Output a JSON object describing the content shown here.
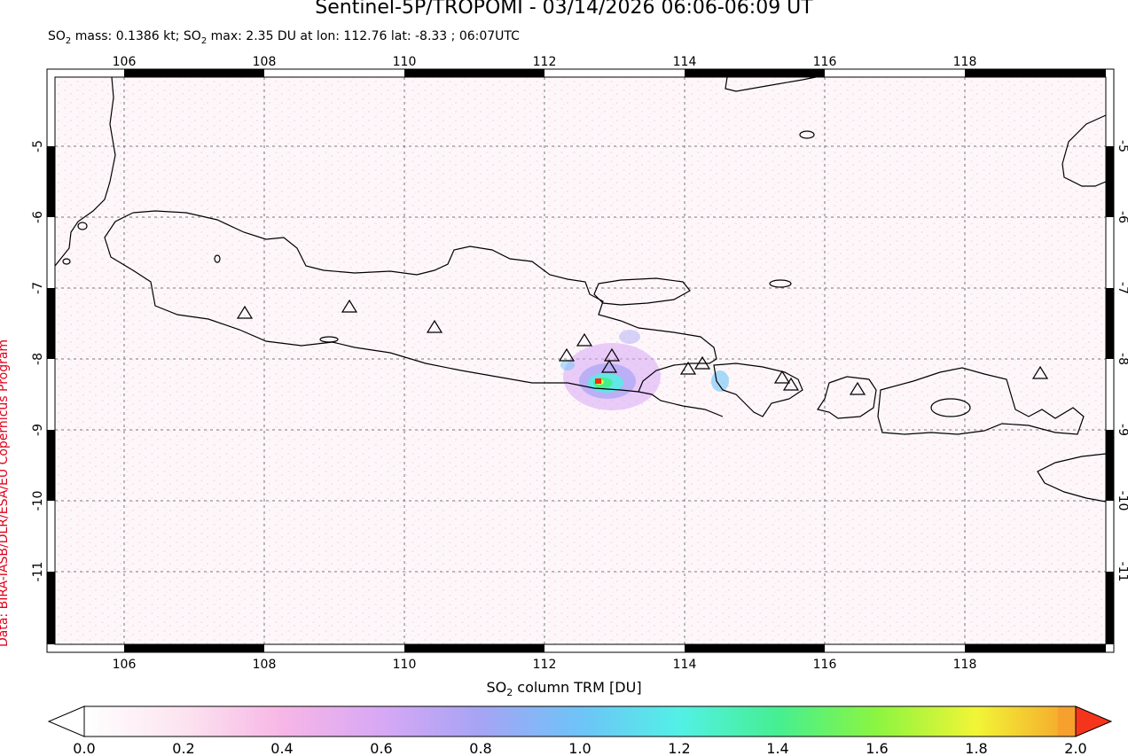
{
  "title": "Sentinel-5P/TROPOMI - 03/14/2026 06:06-06:09 UT",
  "subtitle": {
    "prefix": "SO",
    "mass_text": " mass: 0.1386 kt; SO",
    "rest_text": " max: 2.35 DU at lon: 112.76 lat: -8.33 ; 06:07UTC",
    "sub": "2"
  },
  "credit": "Data: BIRA-IASB/DLR/ESA/EU Copernicus Program",
  "map": {
    "lon_labels": [
      "106",
      "108",
      "110",
      "112",
      "114",
      "116",
      "118"
    ],
    "lat_labels": [
      "-5",
      "-6",
      "-7",
      "-8",
      "-9",
      "-10",
      "-11"
    ],
    "max_point": {
      "lon": 112.76,
      "lat": -8.33
    },
    "volcano_marker": "triangle-icon",
    "colors": {
      "land_outline": "#000000",
      "grid": "#777777",
      "max_marker": "#ff2a00"
    }
  },
  "colorbar": {
    "label_prefix": "SO",
    "label_sub": "2",
    "label_suffix": " column TRM [DU]",
    "tick_labels": [
      "0.0",
      "0.2",
      "0.4",
      "0.6",
      "0.8",
      "1.0",
      "1.2",
      "1.4",
      "1.6",
      "1.8",
      "2.0"
    ],
    "colors": [
      "#ffffff",
      "#fce4ef",
      "#f7b6e6",
      "#d7a8f5",
      "#a6a4f4",
      "#6ec3f7",
      "#53f0e6",
      "#45ef91",
      "#8cf540",
      "#f2f536",
      "#f6a02d",
      "#f5341c"
    ]
  }
}
